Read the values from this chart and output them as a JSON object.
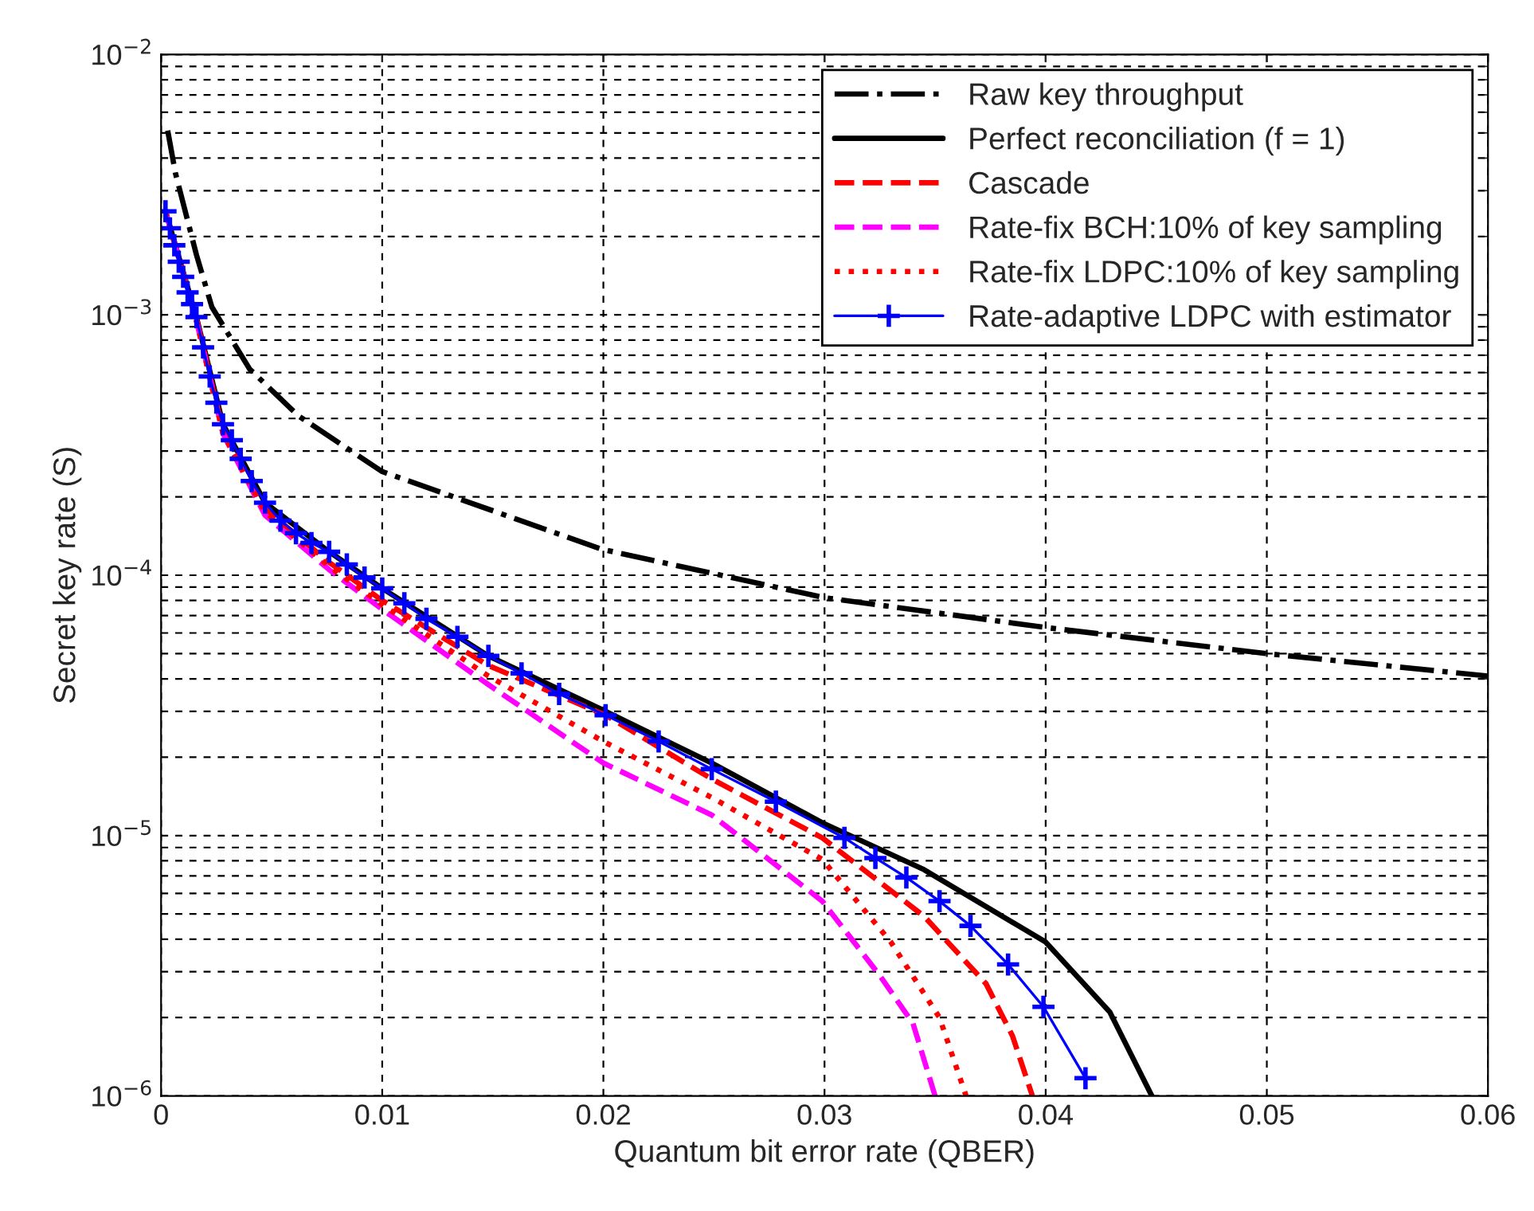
{
  "chart_data": {
    "type": "line",
    "xlabel": "Quantum bit error rate (QBER)",
    "ylabel": "Secret key rate (S)",
    "log": "y",
    "grid": true,
    "legend": "top right",
    "xlim": [
      0,
      0.06
    ],
    "xticks": [
      0,
      0.01,
      0.02,
      0.03,
      0.04,
      0.05,
      0.06
    ],
    "ylim": [
      1e-06,
      0.01
    ],
    "yticks": [
      {
        "value": 1e-06,
        "label": "10$^{−6}$"
      },
      {
        "value": 1e-05,
        "label": "10$^{−5}$"
      },
      {
        "value": 0.0001,
        "label": "10$^{−4}$"
      },
      {
        "value": 0.001,
        "label": "10$^{−3}$"
      },
      {
        "value": 0.01,
        "label": "10$^{−2}$"
      }
    ],
    "series": [
      {
        "name": "Raw key throughput",
        "color": "#000000",
        "line_style": "dashdot",
        "x": [
          0.0003,
          0.00065,
          0.0016,
          0.0023,
          0.004,
          0.0062,
          0.01,
          0.0199,
          0.03,
          0.04,
          0.05,
          0.06
        ],
        "values": [
          0.0051,
          0.0035,
          0.0017,
          0.00107,
          0.00062,
          0.00041,
          0.00025,
          0.000126,
          8.2e-05,
          6.3e-05,
          5e-05,
          4.1e-05
        ]
      },
      {
        "name": "Perfect reconciliation (f = 1)",
        "color": "#000000",
        "line_style": "solid",
        "x": [
          0.0002,
          0.0016,
          0.0028,
          0.0047,
          0.0076,
          0.01,
          0.0148,
          0.0201,
          0.0249,
          0.0299,
          0.0345,
          0.04,
          0.0429,
          0.0448
        ],
        "values": [
          0.0025,
          0.00098,
          0.00038,
          0.00019,
          0.000123,
          8.9e-05,
          4.9e-05,
          3e-05,
          1.9e-05,
          1.12e-05,
          7.4e-06,
          3.9e-06,
          2.1e-06,
          1e-06
        ]
      },
      {
        "name": "Cascade",
        "color": "#ff0000",
        "line_style": "dashed",
        "x": [
          0.0002,
          0.0016,
          0.0028,
          0.0047,
          0.0076,
          0.01,
          0.0148,
          0.0201,
          0.0249,
          0.0299,
          0.0345,
          0.0373,
          0.0385,
          0.0394
        ],
        "values": [
          0.0025,
          0.00096,
          0.00036,
          0.00018,
          0.000112,
          8e-05,
          4.5e-05,
          2.9e-05,
          1.65e-05,
          9.8e-06,
          4.9e-06,
          2.7e-06,
          1.7e-06,
          1e-06
        ]
      },
      {
        "name": "Rate-fix BCH:10% of key sampling",
        "color": "#ff00ff",
        "line_style": "dashed",
        "x": [
          0.0002,
          0.0016,
          0.0028,
          0.0047,
          0.0076,
          0.01,
          0.0148,
          0.02,
          0.0249,
          0.0299,
          0.0325,
          0.034,
          0.035
        ],
        "values": [
          0.0025,
          0.00095,
          0.00035,
          0.00017,
          0.000105,
          7.4e-05,
          3.8e-05,
          1.9e-05,
          1.2e-05,
          5.6e-06,
          2.9e-06,
          1.9e-06,
          1e-06
        ]
      },
      {
        "name": "Rate-fix LDPC:10% of key sampling",
        "color": "#ff0000",
        "line_style": "dotted",
        "x": [
          0.0002,
          0.0016,
          0.0028,
          0.0047,
          0.0076,
          0.01,
          0.0148,
          0.02,
          0.0249,
          0.0299,
          0.033,
          0.0352,
          0.0364
        ],
        "values": [
          0.0025,
          0.00095,
          0.00035,
          0.000175,
          0.000108,
          7.7e-05,
          4.1e-05,
          2.3e-05,
          1.4e-05,
          8.1e-06,
          3.9e-06,
          2e-06,
          1e-06
        ]
      },
      {
        "name": "Rate-adaptive LDPC with estimator",
        "color": "#0000ff",
        "line_style": "solid",
        "marker": "cross",
        "x": [
          0.0002,
          0.0004,
          0.0006,
          0.0008,
          0.001,
          0.0012,
          0.0014,
          0.0016,
          0.0019,
          0.0022,
          0.0025,
          0.0028,
          0.0032,
          0.0036,
          0.0041,
          0.0047,
          0.0054,
          0.0061,
          0.0068,
          0.0076,
          0.0084,
          0.0092,
          0.01,
          0.011,
          0.012,
          0.0134,
          0.0148,
          0.0163,
          0.018,
          0.0201,
          0.0225,
          0.0249,
          0.0278,
          0.0309,
          0.0323,
          0.0337,
          0.0352,
          0.0366,
          0.0383,
          0.0399,
          0.0418
        ],
        "values": [
          0.0025,
          0.00215,
          0.00185,
          0.0016,
          0.0014,
          0.00122,
          0.0011,
          0.00098,
          0.00075,
          0.00058,
          0.00046,
          0.00038,
          0.00033,
          0.00028,
          0.00023,
          0.00019,
          0.000162,
          0.000145,
          0.000133,
          0.000123,
          0.00011,
          9.8e-05,
          8.9e-05,
          7.8e-05,
          6.8e-05,
          5.8e-05,
          4.9e-05,
          4.2e-05,
          3.5e-05,
          2.9e-05,
          2.3e-05,
          1.8e-05,
          1.35e-05,
          9.8e-06,
          8.2e-06,
          6.9e-06,
          5.6e-06,
          4.5e-06,
          3.2e-06,
          2.2e-06,
          1.17e-06
        ]
      }
    ]
  }
}
